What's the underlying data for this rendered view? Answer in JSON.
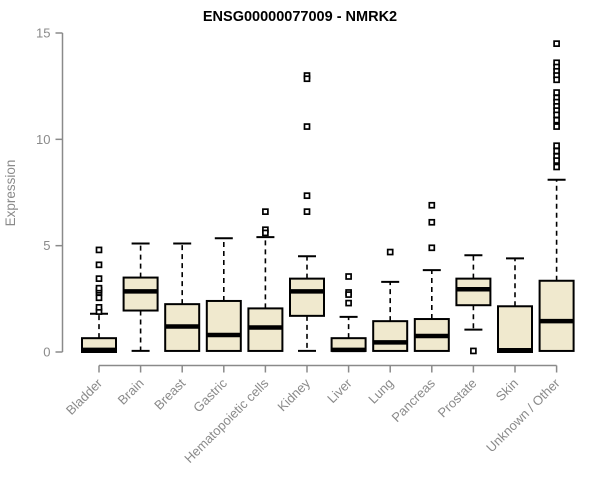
{
  "chart": {
    "title": "ENSG00000077009 - NMRK2",
    "ylabel": "Expression"
  },
  "chart_data": {
    "type": "boxplot",
    "title": "ENSG00000077009 - NMRK2",
    "xlabel": "",
    "ylabel": "Expression",
    "ylim": [
      0,
      15
    ],
    "yticks": [
      0,
      5,
      10,
      15
    ],
    "grid": false,
    "legend": false,
    "colors": {
      "box_fill": "#f0e9ce",
      "box_border": "#000000",
      "median": "#000000",
      "whisker": "#000000",
      "outlier": "#000000",
      "axis": "#8a8a8a",
      "title": "#000000",
      "background": "#ffffff"
    },
    "categories": [
      "Bladder",
      "Brain",
      "Breast",
      "Gastric",
      "Hematopoietic cells",
      "Kidney",
      "Liver",
      "Lung",
      "Pancreas",
      "Prostate",
      "Skin",
      "Unknown / Other"
    ],
    "series": [
      {
        "category": "Bladder",
        "whisker_low": 0.0,
        "q1": 0.0,
        "median": 0.1,
        "q3": 0.65,
        "whisker_high": 1.8,
        "outliers": [
          1.9,
          2.1,
          2.55,
          2.8,
          2.9,
          3.0,
          3.45,
          4.1,
          4.8
        ]
      },
      {
        "category": "Brain",
        "whisker_low": 0.05,
        "q1": 1.95,
        "median": 2.85,
        "q3": 3.5,
        "whisker_high": 5.1,
        "outliers": []
      },
      {
        "category": "Breast",
        "whisker_low": 0.05,
        "q1": 0.05,
        "median": 1.2,
        "q3": 2.25,
        "whisker_high": 5.1,
        "outliers": []
      },
      {
        "category": "Gastric",
        "whisker_low": 0.05,
        "q1": 0.05,
        "median": 0.8,
        "q3": 2.4,
        "whisker_high": 5.35,
        "outliers": []
      },
      {
        "category": "Hematopoietic cells",
        "whisker_low": 0.05,
        "q1": 0.05,
        "median": 1.15,
        "q3": 2.05,
        "whisker_high": 5.4,
        "outliers": [
          6.6,
          5.75,
          5.6
        ]
      },
      {
        "category": "Kidney",
        "whisker_low": 0.05,
        "q1": 1.7,
        "median": 2.85,
        "q3": 3.45,
        "whisker_high": 4.5,
        "outliers": [
          13.0,
          12.85,
          10.6,
          7.35,
          6.6
        ]
      },
      {
        "category": "Liver",
        "whisker_low": 0.05,
        "q1": 0.05,
        "median": 0.1,
        "q3": 0.65,
        "whisker_high": 1.65,
        "outliers": [
          3.55,
          2.8,
          2.7,
          2.3
        ]
      },
      {
        "category": "Lung",
        "whisker_low": 0.05,
        "q1": 0.05,
        "median": 0.45,
        "q3": 1.45,
        "whisker_high": 3.3,
        "outliers": [
          4.7
        ]
      },
      {
        "category": "Pancreas",
        "whisker_low": 0.05,
        "q1": 0.05,
        "median": 0.75,
        "q3": 1.55,
        "whisker_high": 3.85,
        "outliers": [
          6.9,
          6.1,
          4.9
        ]
      },
      {
        "category": "Prostate",
        "whisker_low": 1.05,
        "q1": 2.2,
        "median": 2.95,
        "q3": 3.45,
        "whisker_high": 4.55,
        "outliers": [
          0.05
        ]
      },
      {
        "category": "Skin",
        "whisker_low": 0.0,
        "q1": 0.0,
        "median": 0.08,
        "q3": 2.15,
        "whisker_high": 4.4,
        "outliers": []
      },
      {
        "category": "Unknown / Other",
        "whisker_low": 0.05,
        "q1": 0.05,
        "median": 1.45,
        "q3": 3.35,
        "whisker_high": 8.1,
        "outliers": [
          14.5,
          13.6,
          13.4,
          13.2,
          13.0,
          12.8,
          12.2,
          11.95,
          11.75,
          11.55,
          11.35,
          11.15,
          10.9,
          10.6,
          9.7,
          9.45,
          9.2,
          9.0,
          8.7
        ]
      }
    ]
  }
}
